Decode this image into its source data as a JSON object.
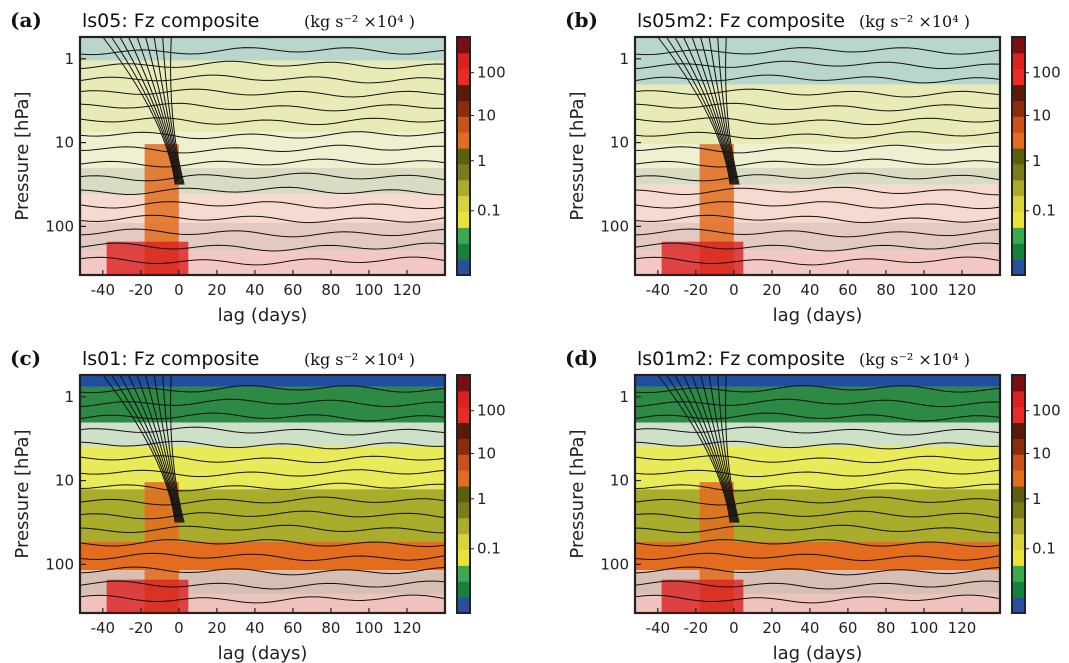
{
  "chart_data": [
    {
      "panel_label": "(a)",
      "title": "ls05: Fz composite",
      "units": "(kg s⁻² ×10⁴ )",
      "type": "heatmap",
      "xlabel": "lag (days)",
      "ylabel": "Pressure [hPa]",
      "xlim": [
        -52,
        140
      ],
      "x_ticks": [
        -40,
        -20,
        0,
        20,
        40,
        60,
        80,
        100,
        120
      ],
      "y_ticks": [
        1,
        10,
        100
      ],
      "y_scale": "log",
      "y_inverted": true,
      "colorbar_ticks": [
        "100",
        "10",
        "1",
        "0.1"
      ],
      "colorbar_colors": [
        "#2a4f9e",
        "#14823c",
        "#3ca84f",
        "#e8e23a",
        "#d6d33c",
        "#a9ad2b",
        "#7a7d1a",
        "#5c5f10",
        "#e36c1f",
        "#c8531a",
        "#8d2c0c",
        "#5a1a0a",
        "#ec2a24",
        "#d92121",
        "#7a0e12"
      ]
    },
    {
      "panel_label": "(b)",
      "title": "ls05m2: Fz composite",
      "units": "(kg s⁻² ×10⁴ )",
      "type": "heatmap",
      "xlabel": "lag (days)",
      "ylabel": "Pressure [hPa]",
      "xlim": [
        -52,
        140
      ],
      "x_ticks": [
        -40,
        -20,
        0,
        20,
        40,
        60,
        80,
        100,
        120
      ],
      "y_ticks": [
        1,
        10,
        100
      ],
      "y_scale": "log",
      "y_inverted": true,
      "colorbar_ticks": [
        "100",
        "10",
        "1",
        "0.1"
      ],
      "colorbar_colors": [
        "#2a4f9e",
        "#14823c",
        "#3ca84f",
        "#e8e23a",
        "#d6d33c",
        "#a9ad2b",
        "#7a7d1a",
        "#5c5f10",
        "#e36c1f",
        "#c8531a",
        "#8d2c0c",
        "#5a1a0a",
        "#ec2a24",
        "#d92121",
        "#7a0e12"
      ]
    },
    {
      "panel_label": "(c)",
      "title": "ls01: Fz composite",
      "units": "(kg s⁻² ×10⁴ )",
      "type": "heatmap",
      "xlabel": "lag (days)",
      "ylabel": "Pressure [hPa]",
      "xlim": [
        -52,
        140
      ],
      "x_ticks": [
        -40,
        -20,
        0,
        20,
        40,
        60,
        80,
        100,
        120
      ],
      "y_ticks": [
        1,
        10,
        100
      ],
      "y_scale": "log",
      "y_inverted": true,
      "colorbar_ticks": [
        "100",
        "10",
        "1",
        "0.1"
      ],
      "colorbar_colors": [
        "#2a4f9e",
        "#14823c",
        "#3ca84f",
        "#e8e23a",
        "#d6d33c",
        "#a9ad2b",
        "#7a7d1a",
        "#5c5f10",
        "#e36c1f",
        "#c8531a",
        "#8d2c0c",
        "#5a1a0a",
        "#ec2a24",
        "#d92121",
        "#7a0e12"
      ]
    },
    {
      "panel_label": "(d)",
      "title": "ls01m2: Fz composite",
      "units": "(kg s⁻² ×10⁴ )",
      "type": "heatmap",
      "xlabel": "lag (days)",
      "ylabel": "Pressure [hPa]",
      "xlim": [
        -52,
        140
      ],
      "x_ticks": [
        -40,
        -20,
        0,
        20,
        40,
        60,
        80,
        100,
        120
      ],
      "y_ticks": [
        1,
        10,
        100
      ],
      "y_scale": "log",
      "y_inverted": true,
      "colorbar_ticks": [
        "100",
        "10",
        "1",
        "0.1"
      ],
      "colorbar_colors": [
        "#2a4f9e",
        "#14823c",
        "#3ca84f",
        "#e8e23a",
        "#d6d33c",
        "#a9ad2b",
        "#7a7d1a",
        "#5c5f10",
        "#e36c1f",
        "#c8531a",
        "#8d2c0c",
        "#5a1a0a",
        "#ec2a24",
        "#d92121",
        "#7a0e12"
      ]
    }
  ]
}
